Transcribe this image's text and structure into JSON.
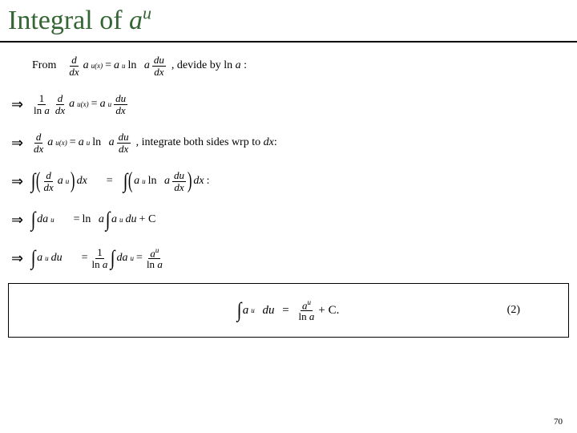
{
  "title": {
    "pre": "Integral of ",
    "base": "a",
    "sup": "u"
  },
  "line0": {
    "from": "From",
    "trail": ",  devide by ln ",
    "trail_a": "a",
    "colon": " :"
  },
  "line2": {
    "trail": ",  integrate both sides wrp to ",
    "dx": "dx",
    "colon": ":"
  },
  "line3": {
    "colon": ":"
  },
  "boxed": {
    "eqnum": "(2)"
  },
  "tokens": {
    "d": "d",
    "dx": "dx",
    "du": "du",
    "a": "a",
    "u": "u",
    "ux": "u(x)",
    "eq": "=",
    "ln": "ln",
    "plusC": " + C",
    "plusCdot": " + C.",
    "one": "1",
    "da": "da"
  },
  "pagenum": "70"
}
